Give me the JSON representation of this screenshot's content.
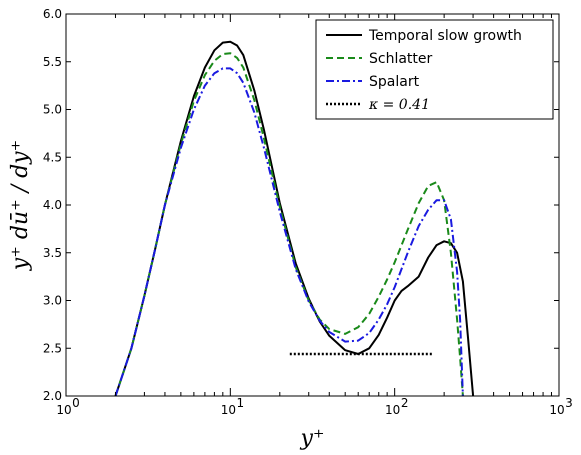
{
  "chart_data": {
    "type": "line",
    "title": "",
    "xlabel": "y⁺",
    "ylabel": "y⁺ dū⁺ / dy⁺",
    "x_scale": "log",
    "xlim": [
      1,
      1000
    ],
    "ylim": [
      2.0,
      6.0
    ],
    "grid": false,
    "legend_position": "top-right",
    "x_ticks": [
      {
        "value": 1,
        "label": "10",
        "exp": "0"
      },
      {
        "value": 10,
        "label": "10",
        "exp": "1"
      },
      {
        "value": 100,
        "label": "10",
        "exp": "2"
      },
      {
        "value": 1000,
        "label": "10",
        "exp": "3"
      }
    ],
    "y_ticks": [
      "2.0",
      "2.5",
      "3.0",
      "3.5",
      "4.0",
      "4.5",
      "5.0",
      "5.5",
      "6.0"
    ],
    "series": [
      {
        "name": "Temporal slow growth",
        "color": "#000000",
        "style": "solid",
        "x": [
          2.0,
          2.5,
          3.0,
          3.5,
          4,
          5,
          6,
          7,
          8,
          9,
          10,
          11,
          12,
          14,
          16,
          20,
          25,
          30,
          35,
          40,
          50,
          60,
          70,
          80,
          90,
          100,
          110,
          120,
          140,
          160,
          180,
          200,
          220,
          240,
          260,
          280,
          300
        ],
        "y": [
          2.0,
          2.5,
          3.05,
          3.55,
          4.0,
          4.67,
          5.14,
          5.44,
          5.62,
          5.7,
          5.71,
          5.67,
          5.57,
          5.2,
          4.79,
          4.02,
          3.39,
          3.02,
          2.78,
          2.63,
          2.48,
          2.44,
          2.5,
          2.64,
          2.82,
          3.0,
          3.1,
          3.15,
          3.25,
          3.45,
          3.58,
          3.62,
          3.6,
          3.5,
          3.2,
          2.6,
          2.0
        ]
      },
      {
        "name": "Schlatter",
        "color": "#1a8a1a",
        "style": "dashed",
        "x": [
          2.0,
          2.5,
          3.0,
          3.5,
          4,
          5,
          6,
          7,
          8,
          9,
          10,
          11,
          12,
          14,
          16,
          20,
          25,
          30,
          35,
          40,
          50,
          60,
          70,
          80,
          90,
          100,
          120,
          140,
          160,
          180,
          200,
          220,
          240,
          250,
          260
        ],
        "y": [
          2.0,
          2.5,
          3.05,
          3.55,
          4.0,
          4.64,
          5.09,
          5.36,
          5.51,
          5.58,
          5.59,
          5.54,
          5.44,
          5.1,
          4.7,
          3.98,
          3.35,
          3.0,
          2.8,
          2.7,
          2.65,
          2.72,
          2.86,
          3.04,
          3.22,
          3.4,
          3.74,
          4.02,
          4.2,
          4.24,
          4.05,
          3.5,
          2.8,
          2.4,
          2.0
        ]
      },
      {
        "name": "Spalart",
        "color": "#1a1ae0",
        "style": "dashdot",
        "x": [
          2.0,
          2.5,
          3.0,
          3.5,
          4,
          5,
          6,
          7,
          8,
          9,
          10,
          11,
          12,
          14,
          16,
          20,
          25,
          30,
          35,
          40,
          50,
          60,
          70,
          80,
          90,
          100,
          120,
          140,
          160,
          180,
          200,
          220,
          240,
          250,
          260
        ],
        "y": [
          2.0,
          2.5,
          3.05,
          3.55,
          4.0,
          4.6,
          5.0,
          5.25,
          5.38,
          5.43,
          5.43,
          5.38,
          5.28,
          4.97,
          4.6,
          3.93,
          3.33,
          2.99,
          2.79,
          2.67,
          2.57,
          2.58,
          2.66,
          2.8,
          2.96,
          3.14,
          3.5,
          3.78,
          3.95,
          4.05,
          4.05,
          3.85,
          3.3,
          2.8,
          2.0
        ]
      },
      {
        "name": "κ = 0.41",
        "color": "#000000",
        "style": "dotted",
        "x": [
          23,
          170
        ],
        "y": [
          2.44,
          2.44
        ]
      }
    ]
  }
}
